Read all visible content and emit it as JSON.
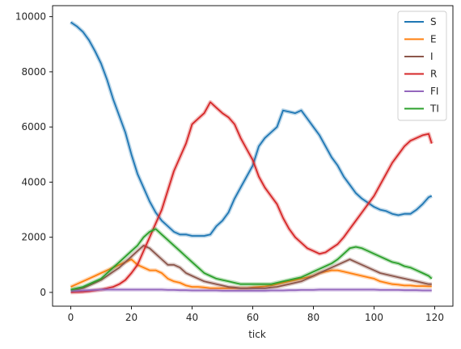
{
  "chart_data": {
    "type": "line",
    "title": "",
    "xlabel": "tick",
    "ylabel": "",
    "xlim": [
      -6,
      126
    ],
    "ylim": [
      -500,
      10400
    ],
    "xticks": [
      0,
      20,
      40,
      60,
      80,
      100,
      120
    ],
    "yticks": [
      0,
      2000,
      4000,
      6000,
      8000,
      10000
    ],
    "grid": false,
    "legend_position": "top-right",
    "x": [
      0,
      2,
      4,
      6,
      8,
      10,
      12,
      14,
      16,
      18,
      20,
      22,
      24,
      26,
      28,
      30,
      32,
      34,
      36,
      38,
      40,
      42,
      44,
      46,
      48,
      50,
      52,
      54,
      56,
      58,
      60,
      62,
      64,
      66,
      68,
      70,
      72,
      74,
      76,
      78,
      80,
      82,
      84,
      86,
      88,
      90,
      92,
      94,
      96,
      98,
      100,
      102,
      104,
      106,
      108,
      110,
      112,
      114,
      116,
      118,
      119
    ],
    "series": [
      {
        "name": "S",
        "color": "#1f77b4",
        "values": [
          9800,
          9650,
          9450,
          9150,
          8750,
          8300,
          7700,
          7000,
          6400,
          5800,
          5000,
          4300,
          3800,
          3300,
          2900,
          2600,
          2400,
          2200,
          2100,
          2100,
          2050,
          2050,
          2050,
          2100,
          2400,
          2600,
          2900,
          3400,
          3800,
          4200,
          4600,
          5300,
          5600,
          5800,
          6000,
          6600,
          6550,
          6500,
          6600,
          6300,
          6000,
          5700,
          5300,
          4900,
          4600,
          4200,
          3900,
          3600,
          3400,
          3250,
          3100,
          3000,
          2950,
          2850,
          2800,
          2850,
          2850,
          3000,
          3200,
          3450,
          3500
        ]
      },
      {
        "name": "E",
        "color": "#ff7f0e",
        "values": [
          200,
          300,
          400,
          500,
          600,
          700,
          800,
          900,
          1000,
          1100,
          1200,
          1000,
          900,
          800,
          800,
          700,
          500,
          400,
          350,
          250,
          200,
          200,
          180,
          150,
          150,
          150,
          150,
          150,
          150,
          150,
          180,
          200,
          220,
          250,
          300,
          350,
          400,
          450,
          500,
          550,
          600,
          700,
          750,
          800,
          800,
          750,
          700,
          650,
          600,
          550,
          500,
          400,
          350,
          300,
          280,
          250,
          250,
          230,
          230,
          220,
          220
        ]
      },
      {
        "name": "I",
        "color": "#8c564b",
        "values": [
          50,
          100,
          150,
          250,
          350,
          450,
          600,
          750,
          900,
          1100,
          1300,
          1500,
          1700,
          1600,
          1400,
          1200,
          1000,
          1000,
          900,
          700,
          600,
          500,
          400,
          350,
          300,
          250,
          200,
          180,
          150,
          150,
          150,
          150,
          150,
          180,
          200,
          250,
          300,
          350,
          400,
          500,
          600,
          700,
          800,
          900,
          1000,
          1100,
          1200,
          1100,
          1000,
          900,
          800,
          700,
          650,
          600,
          550,
          500,
          450,
          400,
          350,
          300,
          300
        ]
      },
      {
        "name": "R",
        "color": "#d62728",
        "values": [
          0,
          10,
          20,
          40,
          70,
          100,
          150,
          200,
          300,
          450,
          700,
          1000,
          1500,
          2000,
          2500,
          3000,
          3700,
          4400,
          4900,
          5400,
          6100,
          6300,
          6500,
          6900,
          6700,
          6500,
          6350,
          6100,
          5600,
          5200,
          4800,
          4200,
          3800,
          3500,
          3200,
          2700,
          2300,
          2000,
          1800,
          1600,
          1500,
          1400,
          1450,
          1600,
          1750,
          2000,
          2300,
          2600,
          2900,
          3200,
          3500,
          3900,
          4300,
          4700,
          5000,
          5300,
          5500,
          5600,
          5700,
          5750,
          5400
        ]
      },
      {
        "name": "FI",
        "color": "#9467bd",
        "values": [
          50,
          60,
          70,
          80,
          90,
          100,
          100,
          100,
          100,
          100,
          100,
          100,
          100,
          100,
          100,
          100,
          90,
          90,
          80,
          80,
          70,
          70,
          70,
          70,
          70,
          60,
          60,
          60,
          60,
          60,
          60,
          60,
          60,
          70,
          70,
          70,
          80,
          80,
          90,
          90,
          90,
          100,
          100,
          100,
          100,
          100,
          100,
          100,
          100,
          100,
          100,
          90,
          90,
          90,
          90,
          80,
          80,
          80,
          70,
          70,
          70
        ]
      },
      {
        "name": "TI",
        "color": "#2ca02c",
        "values": [
          100,
          150,
          200,
          300,
          400,
          500,
          700,
          900,
          1100,
          1300,
          1500,
          1700,
          2000,
          2200,
          2300,
          2100,
          1900,
          1700,
          1500,
          1300,
          1100,
          900,
          700,
          600,
          500,
          450,
          400,
          350,
          300,
          300,
          300,
          300,
          300,
          300,
          350,
          400,
          450,
          500,
          550,
          650,
          750,
          850,
          950,
          1050,
          1200,
          1400,
          1600,
          1650,
          1600,
          1500,
          1400,
          1300,
          1200,
          1100,
          1050,
          950,
          900,
          800,
          700,
          600,
          500
        ]
      }
    ]
  }
}
